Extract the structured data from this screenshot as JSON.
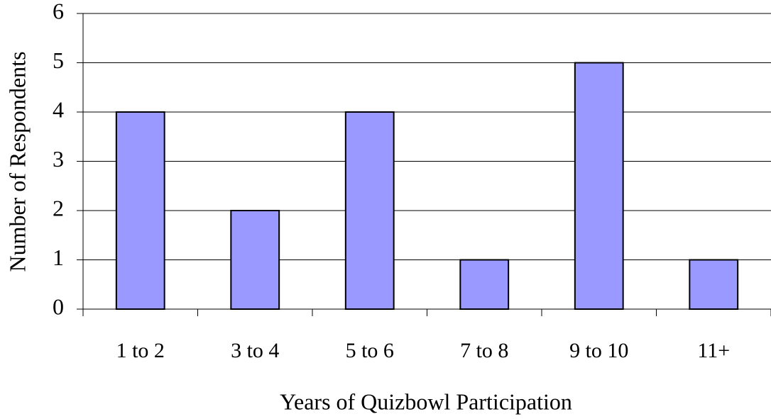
{
  "chart_data": {
    "type": "bar",
    "x_label": "Years of Quizbowl Participation",
    "y_label": "Number of Respondents",
    "categories": [
      "1 to 2",
      "3 to 4",
      "5 to 6",
      "7 to 8",
      "9 to 10",
      "11+"
    ],
    "values": [
      4,
      2,
      4,
      1,
      5,
      1
    ],
    "color": "#9999ff",
    "ylim": [
      0,
      6
    ],
    "yticks": [
      0,
      1,
      2,
      3,
      4,
      5,
      6
    ],
    "grid": true
  }
}
